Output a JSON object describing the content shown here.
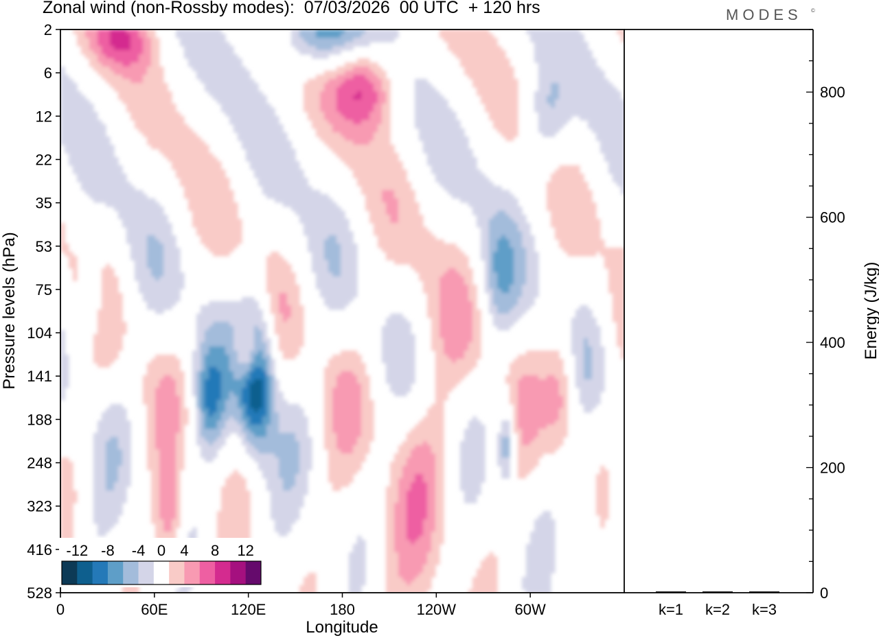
{
  "title": "Zonal wind (non-Rossby modes):  07/03/2026  00 UTC  + 120 hrs",
  "brand": "MODES",
  "brand_mark": "©",
  "chart_data": [
    {
      "type": "heatmap",
      "xlabel": "Longitude",
      "ylabel": "Pressure levels (hPa)",
      "x_ticks": [
        "0",
        "60E",
        "120E",
        "180",
        "120W",
        "60W"
      ],
      "x_tick_degrees": [
        0,
        60,
        120,
        180,
        240,
        300
      ],
      "xlim": [
        0,
        360
      ],
      "y_ticks": [
        "2",
        "6",
        "12",
        "22",
        "35",
        "53",
        "75",
        "104",
        "141",
        "188",
        "248",
        "323",
        "416",
        "528"
      ],
      "grid": false,
      "colorbar": {
        "placement": "bottom-left",
        "labels": [
          "-12",
          "-8",
          "-4",
          "0",
          "4",
          "8",
          "12"
        ],
        "label_values": [
          -12,
          -8,
          -4,
          0,
          4,
          8,
          12
        ],
        "bins": [
          -14,
          -12,
          -10,
          -8,
          -6,
          -4,
          -2,
          2,
          4,
          6,
          8,
          10,
          12,
          14
        ],
        "colors": [
          "#0d3a56",
          "#0e5f8e",
          "#2479b8",
          "#5e9ec8",
          "#a3bcdb",
          "#d4d5e8",
          "#ffffff",
          "#f9cbc7",
          "#f89ab2",
          "#ee5fa2",
          "#d42b8f",
          "#a5107f",
          "#650a6c"
        ]
      },
      "features": [
        {
          "x": 20,
          "y": 6.2,
          "v": -5,
          "rx": 5,
          "ry": 0.7
        },
        {
          "x": 70,
          "y": 11.3,
          "v": 6,
          "rx": 6,
          "ry": 0.9
        },
        {
          "x": 95,
          "y": 8.6,
          "v": -6,
          "rx": 7,
          "ry": 0.8
        },
        {
          "x": 120,
          "y": 7.5,
          "v": 8,
          "rx": 6,
          "ry": 0.5
        },
        {
          "x": 125,
          "y": 8.0,
          "v": -13,
          "rx": 8,
          "ry": 1.2
        },
        {
          "x": 165,
          "y": 0.1,
          "v": -8,
          "rx": 20,
          "ry": 0.6
        },
        {
          "x": 40,
          "y": 0.2,
          "v": 6,
          "rx": 15,
          "ry": 0.5
        },
        {
          "x": 195,
          "y": 1.3,
          "v": 8,
          "rx": 15,
          "ry": 0.7
        },
        {
          "x": 310,
          "y": 2.1,
          "v": -5,
          "rx": 10,
          "ry": 0.8
        },
        {
          "x": 320,
          "y": 8.3,
          "v": 6,
          "rx": 8,
          "ry": 1.1
        },
        {
          "x": 285,
          "y": 9.6,
          "v": -7,
          "rx": 4,
          "ry": 0.7
        },
        {
          "x": 335,
          "y": 11.3,
          "v": -3,
          "rx": 8,
          "ry": 1.0
        },
        {
          "x": 230,
          "y": 10.5,
          "v": 3,
          "rx": 25,
          "ry": 3.0
        },
        {
          "x": 280,
          "y": 5.8,
          "v": -4,
          "rx": 8,
          "ry": 1.0
        }
      ]
    },
    {
      "type": "bar",
      "categories": [
        "k=1",
        "k=2",
        "k=3"
      ],
      "values": [
        2,
        2,
        2
      ],
      "ylabel": "Energy (J/kg)",
      "y_ticks": [
        "0",
        "200",
        "400",
        "600",
        "800"
      ],
      "ylim": [
        0,
        900
      ]
    }
  ]
}
